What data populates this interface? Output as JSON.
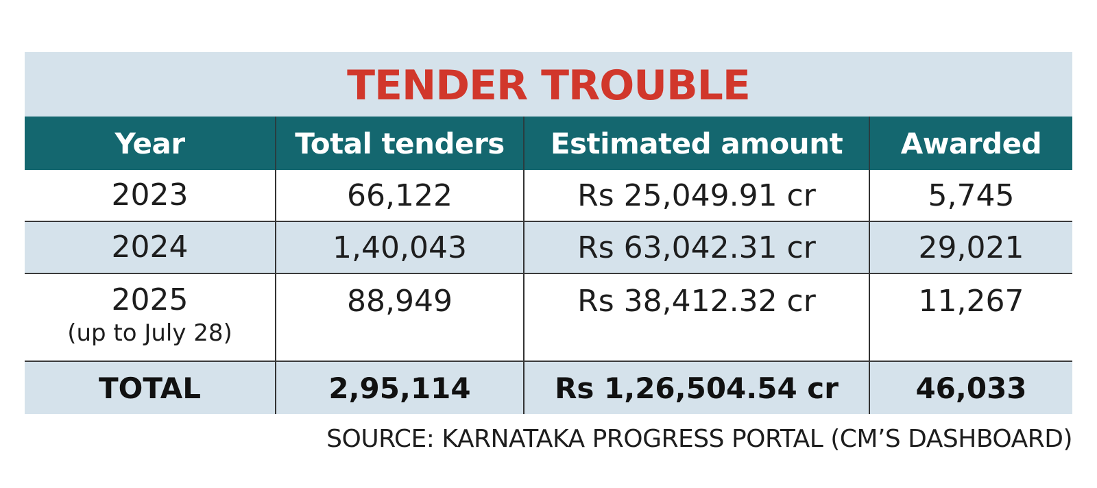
{
  "chart_data": {
    "type": "table",
    "title": "TENDER TROUBLE",
    "columns": [
      "Year",
      "Total tenders",
      "Estimated amount",
      "Awarded"
    ],
    "rows": [
      {
        "year": "2023",
        "year_note": "",
        "total_tenders": "66,122",
        "estimated_amount": "Rs 25,049.91 cr",
        "awarded": "5,745"
      },
      {
        "year": "2024",
        "year_note": "",
        "total_tenders": "1,40,043",
        "estimated_amount": "Rs 63,042.31 cr",
        "awarded": "29,021"
      },
      {
        "year": "2025",
        "year_note": "(up to July 28)",
        "total_tenders": "88,949",
        "estimated_amount": "Rs 38,412.32 cr",
        "awarded": "11,267"
      }
    ],
    "total": {
      "label": "TOTAL",
      "total_tenders": "2,95,114",
      "estimated_amount": "Rs 1,26,504.54 cr",
      "awarded": "46,033"
    },
    "source": "SOURCE: KARNATAKA PROGRESS PORTAL (CM’S DASHBOARD)",
    "colors": {
      "title": "#d1372b",
      "header_bg": "#14676f",
      "band_bg": "#d5e2eb",
      "row_bg": "#ffffff"
    }
  }
}
